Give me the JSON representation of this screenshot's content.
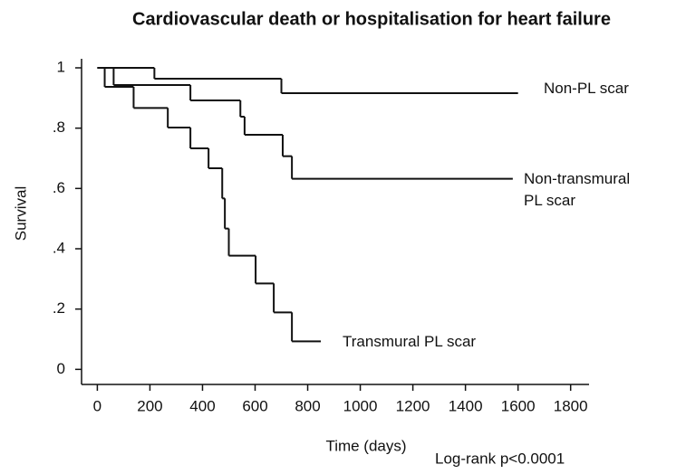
{
  "chart_data": {
    "type": "step",
    "title": "Cardiovascular death or hospitalisation for heart failure",
    "x_label": "Time (days)",
    "y_label": "Survival",
    "annotation": "Log-rank p<0.0001",
    "xlim": [
      -60,
      1870
    ],
    "ylim": [
      -0.05,
      1.03
    ],
    "xticks": [
      0,
      200,
      400,
      600,
      800,
      1000,
      1200,
      1400,
      1600,
      1800
    ],
    "yticks": [
      0,
      {
        "value": 0.2,
        "label": ".2"
      },
      {
        "value": 0.4,
        "label": ".4"
      },
      {
        "value": 0.6,
        "label": ".6"
      },
      {
        "value": 0.8,
        "label": ".8"
      },
      1
    ],
    "color": "#111111",
    "series": [
      {
        "name": "Non-PL scar",
        "x": [
          0,
          217,
          700,
          1600
        ],
        "values": [
          1,
          0.964,
          0.916,
          0.916
        ]
      },
      {
        "name": "Non-transmural PL scar",
        "x": [
          0,
          62,
          354,
          544,
          560,
          705,
          740,
          1580
        ],
        "values": [
          1,
          0.943,
          0.892,
          0.838,
          0.778,
          0.707,
          0.632,
          0.632
        ]
      },
      {
        "name": "Transmural PL scar",
        "x": [
          0,
          28,
          138,
          268,
          354,
          423,
          475,
          485,
          500,
          602,
          671,
          740,
          850
        ],
        "values": [
          1,
          0.937,
          0.867,
          0.802,
          0.733,
          0.667,
          0.567,
          0.467,
          0.377,
          0.285,
          0.189,
          0.093,
          0.093
        ]
      }
    ]
  }
}
